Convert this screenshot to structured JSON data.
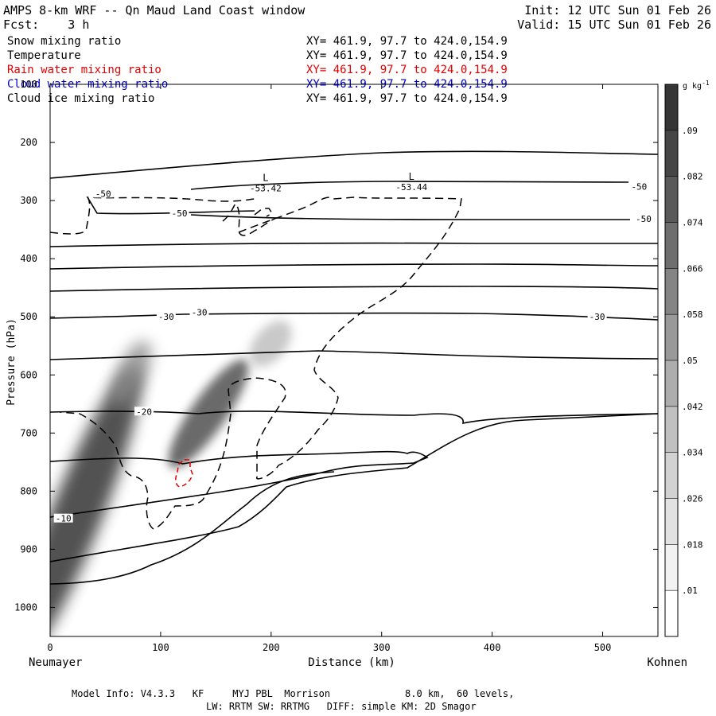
{
  "header": {
    "title": "AMPS 8-km WRF -- Qn Maud Land Coast window",
    "init": "Init: 12 UTC Sun 01 Feb 26",
    "fcst": "Fcst:    3 h",
    "valid": "Valid: 15 UTC Sun 01 Feb 26"
  },
  "fields": [
    {
      "name": "Snow mixing ratio",
      "xy": "XY= 461.9, 97.7 to 424.0,154.9",
      "color": "#000000"
    },
    {
      "name": "Temperature",
      "xy": "XY= 461.9, 97.7 to 424.0,154.9",
      "color": "#000000"
    },
    {
      "name": "Rain water mixing ratio",
      "xy": "XY= 461.9, 97.7 to 424.0,154.9",
      "color": "#e00000"
    },
    {
      "name": "Cloud water mixing ratio",
      "xy": "XY= 461.9, 97.7 to 424.0,154.9",
      "color": "#0000c8"
    },
    {
      "name": "Cloud ice mixing ratio",
      "xy": "XY= 461.9, 97.7 to 424.0,154.9",
      "color": "#000000"
    }
  ],
  "footer": {
    "line1": "Model Info: V4.3.3   KF     MYJ PBL  Morrison             8.0 km,  60 levels,",
    "line2": "LW: RRTM SW: RRTMG   DIFF: simple KM: 2D Smagor"
  },
  "chart_data": {
    "type": "contour-cross-section",
    "xlabel": "Distance (km)",
    "ylabel": "Pressure (hPa)",
    "xlim": [
      0,
      550
    ],
    "ylim": [
      1050,
      100
    ],
    "x_ticks": [
      0,
      100,
      200,
      300,
      400,
      500
    ],
    "y_ticks": [
      100,
      200,
      300,
      400,
      500,
      600,
      700,
      800,
      900,
      1000
    ],
    "left_endpoint": "Neumayer",
    "right_endpoint": "Kohnen",
    "colorbar": {
      "unit": "g kg",
      "unit_exp": "-1",
      "levels": [
        0.01,
        0.018,
        0.026,
        0.034,
        0.042,
        0.05,
        0.058,
        0.066,
        0.074,
        0.082,
        0.09
      ],
      "labels": [
        ".01",
        ".018",
        ".026",
        ".034",
        ".042",
        ".05",
        ".058",
        ".066",
        ".074",
        ".082",
        ".09"
      ],
      "colors": [
        "#ffffff",
        "#f2f2f2",
        "#e2e2e2",
        "#d2d2d2",
        "#c0c0c0",
        "#adadad",
        "#999999",
        "#848484",
        "#6e6e6e",
        "#595959",
        "#454545",
        "#353535"
      ]
    },
    "temperature_labels": [
      {
        "text": "-50",
        "x": 48,
        "p": 288
      },
      {
        "text": "-50",
        "x": 117,
        "p": 322
      },
      {
        "text": "-50",
        "x": 533,
        "p": 276
      },
      {
        "text": "-50",
        "x": 537,
        "p": 331
      },
      {
        "text": "-30",
        "x": 105,
        "p": 500
      },
      {
        "text": "-30",
        "x": 135,
        "p": 492
      },
      {
        "text": "-30",
        "x": 495,
        "p": 500
      },
      {
        "text": "-20",
        "x": 85,
        "p": 663
      },
      {
        "text": "-10",
        "x": 12,
        "p": 847
      }
    ],
    "min_markers": [
      {
        "symbol": "L",
        "value": "-53.42",
        "x": 195,
        "p": 280
      },
      {
        "symbol": "L",
        "value": "-53.44",
        "x": 327,
        "p": 278
      }
    ],
    "snow_maxima": [
      {
        "x": 40,
        "p": 760,
        "value": 0.09
      },
      {
        "x": 130,
        "p": 680,
        "value": 0.08
      },
      {
        "x": 195,
        "p": 560,
        "value": 0.03
      }
    ]
  }
}
